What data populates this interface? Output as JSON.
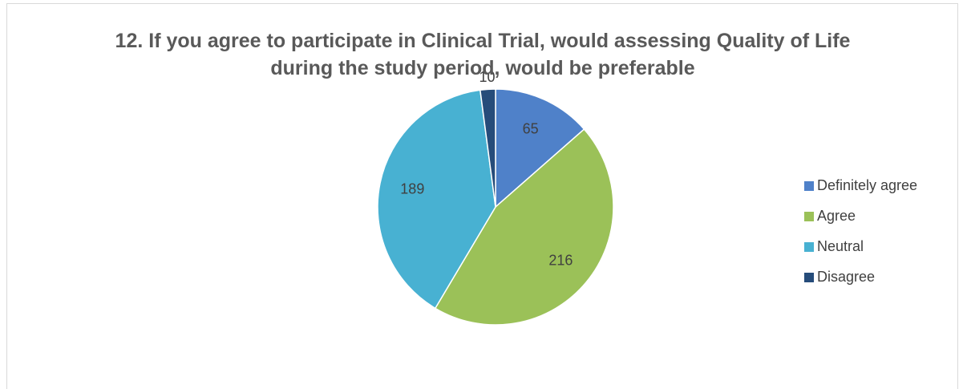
{
  "chart_data": {
    "type": "pie",
    "title": "12. If you agree to participate in Clinical Trial, would assessing Quality of Life during the study period, would be preferable",
    "categories": [
      "Definitely agree",
      "Agree",
      "Neutral",
      "Disagree"
    ],
    "values": [
      65,
      216,
      189,
      10
    ],
    "colors": [
      "#4f81c9",
      "#9bc158",
      "#48b1d2",
      "#264c7a"
    ],
    "legend": "right"
  }
}
